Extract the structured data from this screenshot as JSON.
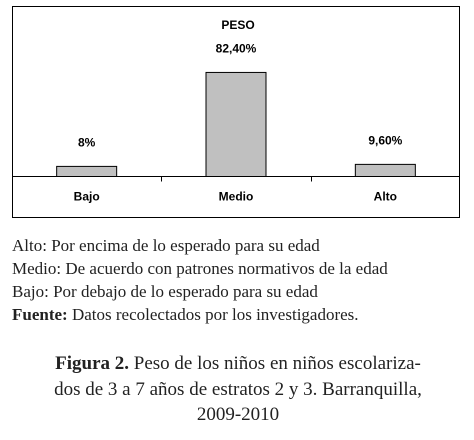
{
  "chart_data": {
    "type": "bar",
    "title": "PESO",
    "categories": [
      "Bajo",
      "Medio",
      "Alto"
    ],
    "values": [
      8,
      82.4,
      9.6
    ],
    "value_labels": [
      "8%",
      "82,40%",
      "9,60%"
    ],
    "color": "#c0c0c0",
    "ylim": [
      0,
      135
    ]
  },
  "notes": [
    "Alto: Por encima de lo esperado para su edad",
    "Medio: De acuerdo con patrones normativos de la edad",
    "Bajo: Por debajo de lo esperado para su edad"
  ],
  "source": {
    "label": "Fuente:",
    "text": "Datos recolectados por los investigadores."
  },
  "caption": {
    "label": "Figura 2.",
    "lines": [
      "Peso de los niños en niños escolariza-",
      "dos de 3 a 7 años de estratos 2 y 3. Barranquilla,",
      "2009-2010"
    ]
  }
}
